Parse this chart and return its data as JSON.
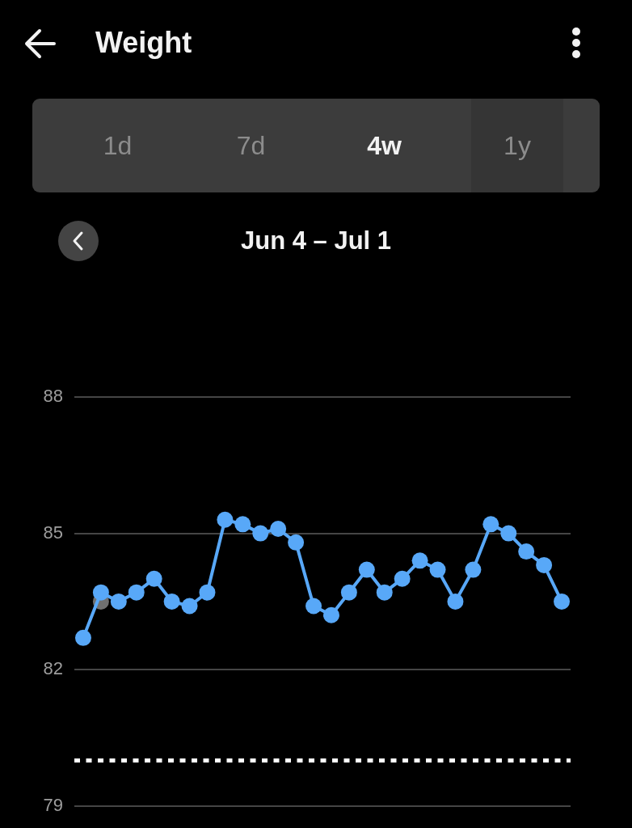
{
  "chart_data": {
    "type": "line",
    "title": "Weight",
    "subtitle": "Jun 4 – Jul 1",
    "annotations": [
      "1d",
      "7d",
      "4w",
      "1y"
    ],
    "categories": [
      null,
      null,
      null,
      null,
      null,
      null,
      null,
      null,
      null,
      null,
      null,
      null,
      null,
      null,
      null,
      null,
      null,
      null,
      null,
      null,
      null,
      null,
      null,
      null,
      null,
      null,
      null,
      null
    ],
    "series": [
      {
        "color": "#58a8f8",
        "values": [
          82.7,
          83.7,
          83.5,
          83.7,
          84.0,
          83.5,
          83.4,
          83.7,
          85.3,
          85.2,
          85.0,
          85.1,
          84.8,
          83.4,
          83.2,
          83.7,
          84.2,
          83.7,
          84.0,
          84.4,
          84.2,
          83.5,
          84.2,
          85.2,
          85.0,
          84.6,
          84.3,
          83.5
        ]
      },
      {
        "type": "scatter",
        "color": "#707070",
        "values": [
          null,
          83.5,
          null,
          null,
          null,
          null,
          null,
          null,
          null,
          null,
          null,
          null,
          null,
          null,
          null,
          null,
          null,
          null,
          null,
          null,
          null,
          null,
          null,
          null,
          null,
          null,
          null,
          null
        ]
      }
    ],
    "ylim": [
      79,
      88
    ],
    "yticks": [
      79,
      82,
      85,
      88
    ],
    "grid": "y",
    "marker": "circle",
    "ref_lines": [
      {
        "axis": "y",
        "value": 80,
        "color": "#ffffff",
        "line_style": "dotted"
      }
    ]
  }
}
